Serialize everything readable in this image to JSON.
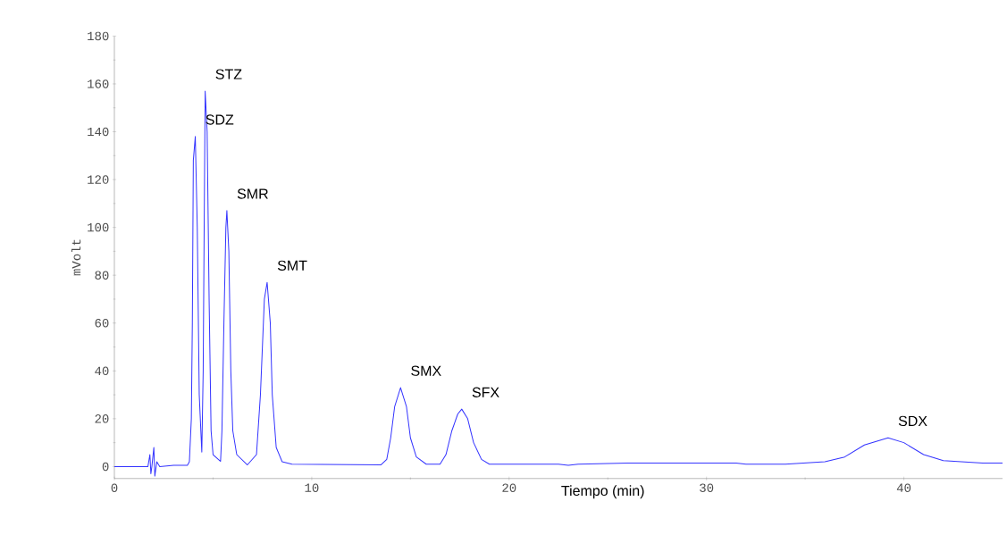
{
  "chart_data": {
    "type": "line",
    "xlabel": "Tiempo (min)",
    "ylabel": "mVolt",
    "xlim": [
      0,
      45
    ],
    "ylim": [
      -5,
      180
    ],
    "xticks": [
      0,
      10,
      20,
      30,
      40
    ],
    "yticks": [
      0,
      20,
      40,
      60,
      80,
      100,
      120,
      140,
      160,
      180
    ],
    "grid": false,
    "marker": "none",
    "line_style": "solid",
    "x": [
      0,
      1.7,
      1.8,
      1.85,
      1.9,
      2.0,
      2.05,
      2.15,
      2.3,
      3.0,
      3.7,
      3.8,
      3.9,
      3.95,
      4.0,
      4.1,
      4.2,
      4.3,
      4.43,
      4.5,
      4.55,
      4.6,
      4.7,
      4.8,
      4.9,
      5.0,
      5.38,
      5.45,
      5.55,
      5.65,
      5.7,
      5.8,
      5.9,
      6.0,
      6.2,
      6.74,
      7.2,
      7.4,
      7.6,
      7.74,
      7.9,
      8.0,
      8.2,
      8.5,
      9.0,
      13.5,
      13.8,
      14.0,
      14.2,
      14.5,
      14.8,
      15.0,
      15.3,
      15.8,
      16.5,
      16.8,
      17.1,
      17.4,
      17.6,
      17.9,
      18.2,
      18.6,
      19.0,
      22.5,
      23,
      23.5,
      26,
      31.5,
      32,
      34,
      36,
      37,
      38,
      39.2,
      40,
      41,
      42,
      44,
      45
    ],
    "series": [
      {
        "color": "#3333ff",
        "values": [
          0,
          0,
          5,
          -3,
          0,
          8,
          -4,
          2,
          0,
          0.5,
          0.5,
          2,
          20,
          60,
          128,
          138,
          100,
          30,
          6,
          40,
          100,
          157,
          140,
          70,
          15,
          5,
          2.2,
          15,
          60,
          100,
          107,
          90,
          40,
          15,
          5,
          0.7,
          5,
          30,
          70,
          77,
          60,
          30,
          8,
          2,
          1,
          0.7,
          3,
          12,
          25,
          33,
          25,
          12,
          4,
          1,
          1,
          5,
          15,
          22,
          24,
          20,
          10,
          3,
          1,
          1,
          0.5,
          1,
          1.5,
          1.5,
          1,
          1,
          2,
          4,
          9,
          12,
          10,
          5,
          2.5,
          1.5,
          1.5
        ]
      }
    ],
    "annotations": [
      {
        "text": "SDZ",
        "x": 4.1,
        "y": 138
      },
      {
        "text": "STZ",
        "x": 4.6,
        "y": 157
      },
      {
        "text": "SMR",
        "x": 5.7,
        "y": 107
      },
      {
        "text": "SMT",
        "x": 7.74,
        "y": 77
      },
      {
        "text": "SMX",
        "x": 14.5,
        "y": 33
      },
      {
        "text": "SFX",
        "x": 17.6,
        "y": 24
      },
      {
        "text": "SDX",
        "x": 39.2,
        "y": 12
      }
    ]
  }
}
